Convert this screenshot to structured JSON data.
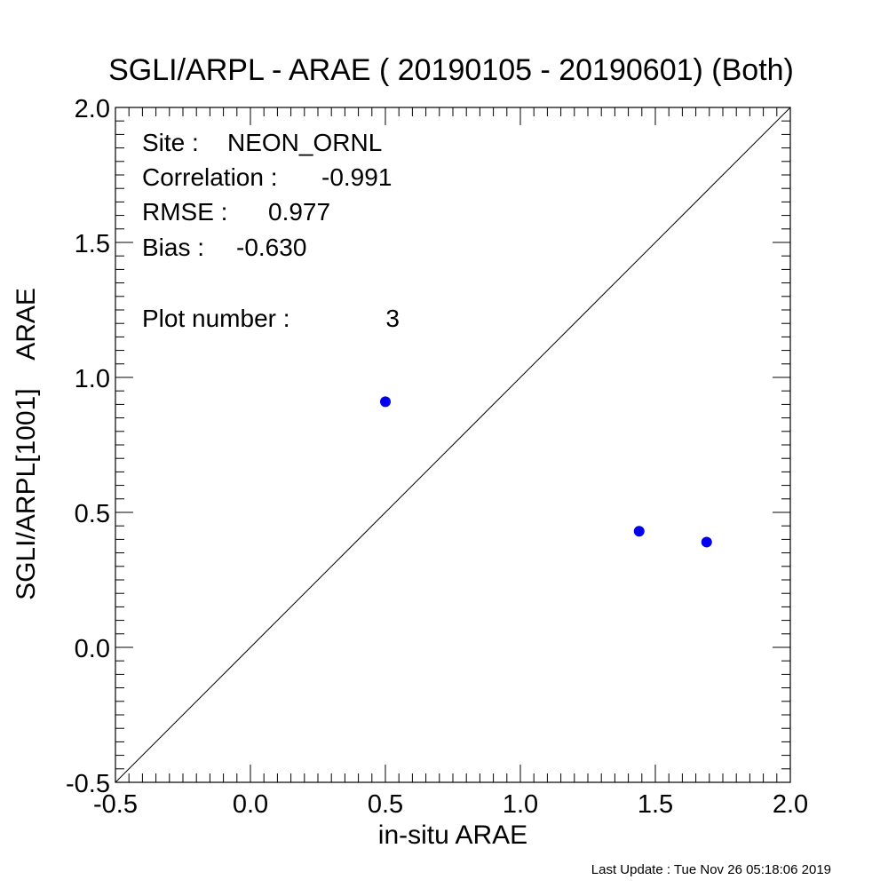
{
  "chart_data": {
    "type": "scatter",
    "title": "SGLI/ARPL - ARAE ( 20190105 - 20190601) (Both)",
    "xlabel": "in-situ ARAE",
    "ylabel": "SGLI/ARPL[1001]    ARAE",
    "xlim": [
      -0.5,
      2.0
    ],
    "ylim": [
      -0.5,
      2.0
    ],
    "xticks": [
      "-0.5",
      "0.0",
      "0.5",
      "1.0",
      "1.5",
      "2.0"
    ],
    "yticks": [
      "-0.5",
      "0.0",
      "0.5",
      "1.0",
      "1.5",
      "2.0"
    ],
    "grid": false,
    "reference_line": "1:1",
    "point_color": "#0000ee",
    "points": [
      {
        "x": 0.5,
        "y": 0.91
      },
      {
        "x": 1.44,
        "y": 0.43
      },
      {
        "x": 1.69,
        "y": 0.39
      }
    ],
    "stats": {
      "site_label": "Site :",
      "site_value": "NEON_ORNL",
      "correlation_label": "Correlation :",
      "correlation_value": "-0.991",
      "rmse_label": "RMSE :",
      "rmse_value": "0.977",
      "bias_label": "Bias :",
      "bias_value": "-0.630",
      "plot_number_label": "Plot number :",
      "plot_number_value": "3"
    }
  },
  "footer": {
    "last_update_label": "Last Update :",
    "last_update_value": "Tue Nov 26 05:18:06 2019"
  }
}
